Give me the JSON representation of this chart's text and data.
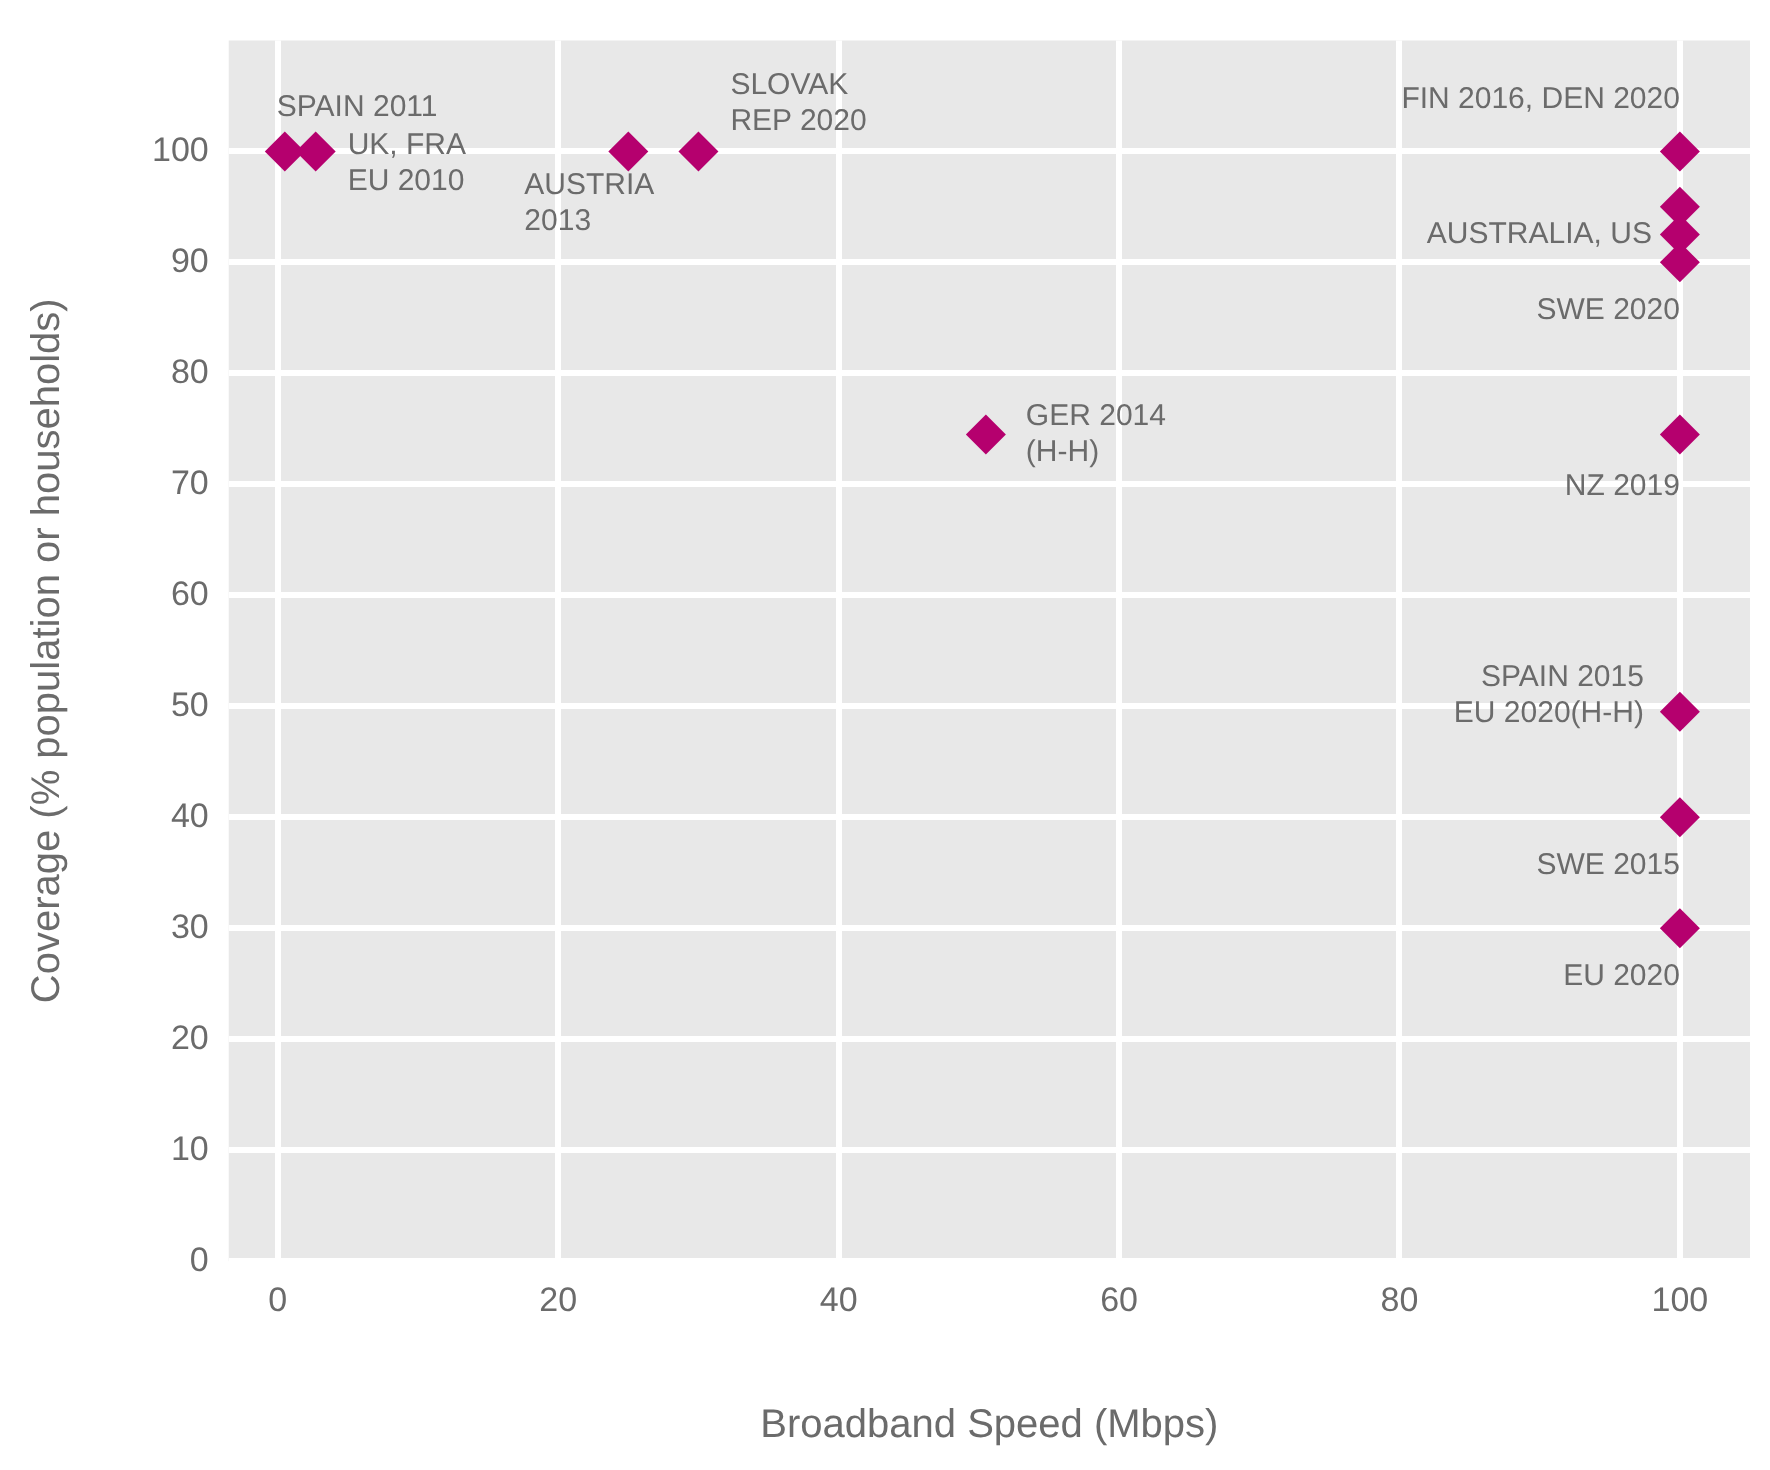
{
  "chart_data": {
    "type": "scatter",
    "xlabel": "Broadband Speed (Mbps)",
    "ylabel": "Coverage (% population or households)",
    "x": [
      0.5,
      2.7,
      25,
      30,
      50.5,
      100,
      100,
      100,
      100,
      100,
      100,
      100,
      100
    ],
    "series": [
      {
        "color": "#b5006e",
        "values": [
          100,
          100,
          100,
          100,
          74.5,
          100,
          95,
          92.5,
          90,
          74.5,
          49.5,
          40,
          30
        ]
      }
    ],
    "xlim": [
      -3.5,
      105
    ],
    "xticks": [
      0,
      20,
      40,
      60,
      80,
      100
    ],
    "ylim": [
      0,
      110
    ],
    "yticks": [
      0,
      10,
      20,
      30,
      40,
      50,
      60,
      70,
      80,
      90,
      100
    ],
    "grid": true,
    "legend": false,
    "marker": "diamond",
    "annotations": [
      {
        "text": "SPAIN 2011",
        "x": 0.5,
        "y": 100
      },
      {
        "text": "UK, FRA\nEU 2010",
        "x": 2.7,
        "y": 100
      },
      {
        "text": "AUSTRIA\n2013",
        "x": 25,
        "y": 100
      },
      {
        "text": "SLOVAK\nREP 2020",
        "x": 30,
        "y": 100
      },
      {
        "text": "GER 2014\n(H-H)",
        "x": 50.5,
        "y": 74.5
      },
      {
        "text": "FIN 2016, DEN 2020",
        "x": 100,
        "y": 100
      },
      {
        "text": "AUSTRALIA, US",
        "x": 100,
        "y": 92.5
      },
      {
        "text": "SWE 2020",
        "x": 100,
        "y": 90
      },
      {
        "text": "NZ 2019",
        "x": 100,
        "y": 74.5
      },
      {
        "text": "SPAIN 2015\nEU 2020(H-H)",
        "x": 100,
        "y": 49.5
      },
      {
        "text": "SWE 2015",
        "x": 100,
        "y": 40
      },
      {
        "text": "EU 2020",
        "x": 100,
        "y": 30
      }
    ]
  }
}
